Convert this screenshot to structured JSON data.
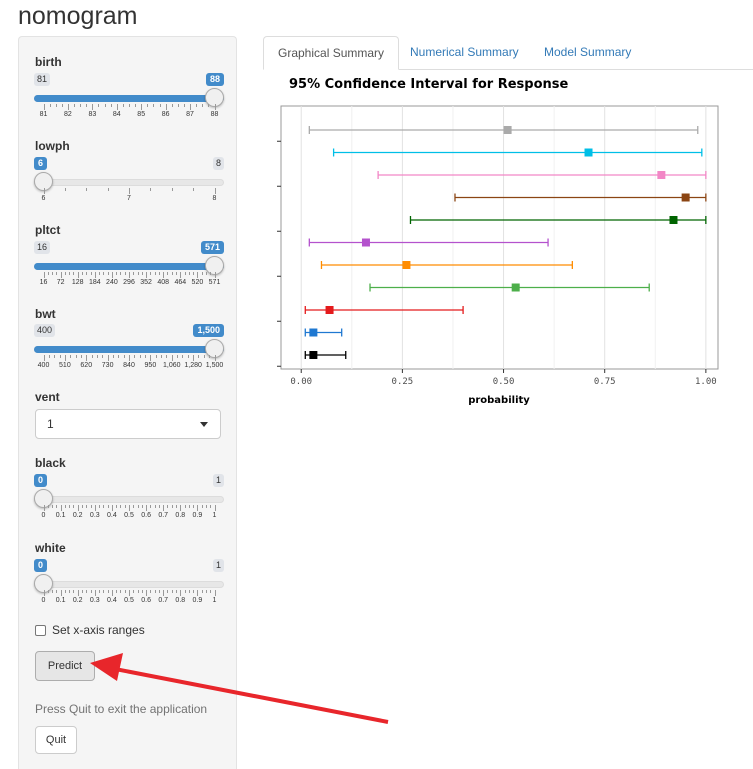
{
  "app_title": "nomogram",
  "sidebar": {
    "sliders": [
      {
        "id": "birth",
        "label": "birth",
        "min_label": "81",
        "max_label": "88",
        "value_label": "88",
        "value_frac": 1.0,
        "ticks": [
          "81",
          "82",
          "83",
          "84",
          "85",
          "86",
          "87",
          "88"
        ]
      },
      {
        "id": "lowph",
        "label": "lowph",
        "min_label": "6",
        "max_label": "8",
        "value_label": "6",
        "value_frac": 0.0,
        "ticks": [
          "6",
          "7",
          "8"
        ]
      },
      {
        "id": "pltct",
        "label": "pltct",
        "min_label": "16",
        "max_label": "571",
        "value_label": "571",
        "value_frac": 1.0,
        "ticks": [
          "16",
          "72",
          "128",
          "184",
          "240",
          "296",
          "352",
          "408",
          "464",
          "520",
          "571"
        ]
      },
      {
        "id": "bwt",
        "label": "bwt",
        "min_label": "400",
        "max_label": "1,500",
        "value_label": "1,500",
        "value_frac": 1.0,
        "ticks": [
          "400",
          "510",
          "620",
          "730",
          "840",
          "950",
          "1,060",
          "1,280",
          "1,500"
        ]
      }
    ],
    "vent": {
      "label": "vent",
      "selected": "1"
    },
    "sliders2": [
      {
        "id": "black",
        "label": "black",
        "min_label": "1",
        "max_label": "1",
        "value_label": "0",
        "value_frac": 0.0,
        "ticks": [
          "0",
          "0.1",
          "0.2",
          "0.3",
          "0.4",
          "0.5",
          "0.6",
          "0.7",
          "0.8",
          "0.9",
          "1"
        ]
      },
      {
        "id": "white",
        "label": "white",
        "min_label": "1",
        "max_label": "1",
        "value_label": "0",
        "value_frac": 0.0,
        "ticks": [
          "0",
          "0.1",
          "0.2",
          "0.3",
          "0.4",
          "0.5",
          "0.6",
          "0.7",
          "0.8",
          "0.9",
          "1"
        ]
      }
    ],
    "checkbox_label": "Set x-axis ranges",
    "predict_label": "Predict",
    "help_text": "Press Quit to exit the application",
    "quit_label": "Quit"
  },
  "tabs": [
    {
      "label": "Graphical Summary",
      "active": true
    },
    {
      "label": "Numerical Summary",
      "active": false
    },
    {
      "label": "Model Summary",
      "active": false
    }
  ],
  "chart_data": {
    "type": "scatter",
    "title": "95% Confidence Interval for Response",
    "xlabel": "probability",
    "ylabel": "",
    "xlim": [
      -0.05,
      1.03
    ],
    "xticks": [
      "0.00",
      "0.25",
      "0.50",
      "0.75",
      "1.00"
    ],
    "grid": true,
    "legend": "none",
    "series": [
      {
        "estimate": 0.51,
        "lower": 0.02,
        "upper": 0.98,
        "color": "#aaaaaa"
      },
      {
        "estimate": 0.71,
        "lower": 0.08,
        "upper": 0.99,
        "color": "#00bfe7"
      },
      {
        "estimate": 0.89,
        "lower": 0.19,
        "upper": 1.0,
        "color": "#f287c6"
      },
      {
        "estimate": 0.95,
        "lower": 0.38,
        "upper": 1.0,
        "color": "#8b4513"
      },
      {
        "estimate": 0.92,
        "lower": 0.27,
        "upper": 1.0,
        "color": "#006400"
      },
      {
        "estimate": 0.16,
        "lower": 0.02,
        "upper": 0.61,
        "color": "#b452cd"
      },
      {
        "estimate": 0.26,
        "lower": 0.05,
        "upper": 0.67,
        "color": "#ff8c00"
      },
      {
        "estimate": 0.53,
        "lower": 0.17,
        "upper": 0.86,
        "color": "#4daf4a"
      },
      {
        "estimate": 0.07,
        "lower": 0.01,
        "upper": 0.4,
        "color": "#e41a1c"
      },
      {
        "estimate": 0.03,
        "lower": 0.01,
        "upper": 0.1,
        "color": "#1f78d1"
      },
      {
        "estimate": 0.03,
        "lower": 0.01,
        "upper": 0.11,
        "color": "#000000"
      }
    ]
  },
  "colors": {
    "accent": "#428bca",
    "arrow": "#e8262b",
    "tab_link": "#337ab7"
  }
}
